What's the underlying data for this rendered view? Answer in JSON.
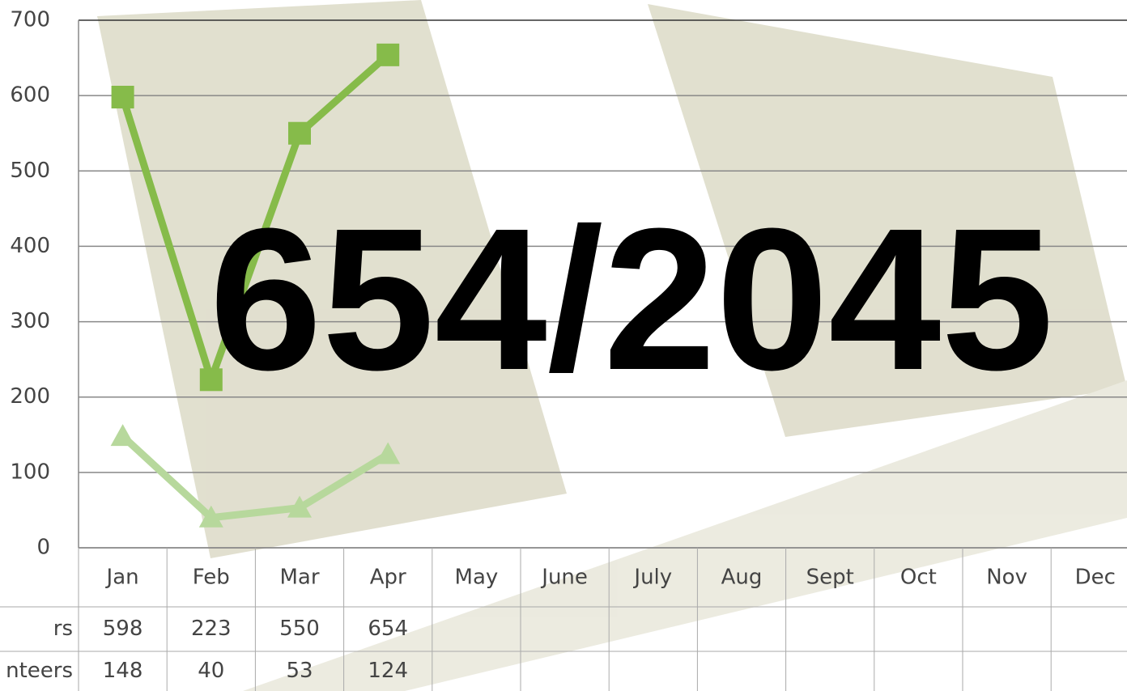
{
  "chart_data": {
    "type": "line",
    "annotation": "654/2045",
    "categories": [
      "Jan",
      "Feb",
      "Mar",
      "Apr",
      "May",
      "June",
      "July",
      "Aug",
      "Sept",
      "Oct",
      "Nov",
      "Dec"
    ],
    "series": [
      {
        "name": "rs",
        "color": "#86bb4a",
        "marker": "square",
        "values": [
          598,
          223,
          550,
          654,
          null,
          null,
          null,
          null,
          null,
          null,
          null,
          null
        ]
      },
      {
        "name": "nteers",
        "color": "#b7d89c",
        "marker": "triangle",
        "values": [
          148,
          40,
          53,
          124,
          null,
          null,
          null,
          null,
          null,
          null,
          null,
          null
        ]
      }
    ],
    "ylim": [
      0,
      700
    ],
    "yticks": [
      0,
      100,
      200,
      300,
      400,
      500,
      600,
      700
    ],
    "grid": true,
    "data_table": true
  }
}
